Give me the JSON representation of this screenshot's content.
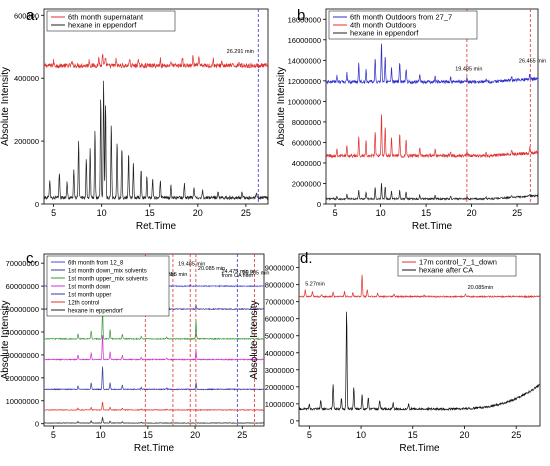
{
  "chart_data": [
    {
      "panel_label": "a.",
      "type": "line",
      "xlabel": "Ret.Time",
      "ylabel": "Absolute Intensity",
      "xlim": [
        4,
        27.3
      ],
      "ylim": [
        0,
        620000
      ],
      "x_ticks": [
        "5",
        "10",
        "15",
        "20",
        "25"
      ],
      "y_ticks": [
        "0",
        "200000",
        "400000",
        "600000"
      ],
      "legend_placement": "top-left",
      "series": [
        {
          "name": "6th month supernatant",
          "color": "#e03030",
          "baseline": 440000,
          "noise": 7000,
          "peaks": [
            [
              5.0,
              14000
            ],
            [
              6.9,
              12000
            ],
            [
              8.7,
              18000
            ],
            [
              9.7,
              26000
            ],
            [
              10.1,
              36000
            ],
            [
              10.4,
              28000
            ],
            [
              11.5,
              20000
            ],
            [
              12.9,
              24000
            ],
            [
              13.8,
              18000
            ],
            [
              16.1,
              22000
            ],
            [
              17.2,
              16000
            ],
            [
              18.4,
              26000
            ],
            [
              19.5,
              30000
            ],
            [
              20.1,
              28000
            ],
            [
              21.6,
              20000
            ],
            [
              22.5,
              16000
            ],
            [
              24.3,
              14000
            ]
          ]
        },
        {
          "name": "hexane in eppendorf",
          "color": "#222222",
          "baseline": 20000,
          "noise": 5000,
          "peaks": [
            [
              4.6,
              60000
            ],
            [
              5.6,
              80000
            ],
            [
              6.4,
              50000
            ],
            [
              7.1,
              90000
            ],
            [
              7.6,
              180000
            ],
            [
              8.4,
              120000
            ],
            [
              8.8,
              160000
            ],
            [
              9.3,
              220000
            ],
            [
              9.9,
              320000
            ],
            [
              10.2,
              380000
            ],
            [
              10.4,
              300000
            ],
            [
              11.0,
              240000
            ],
            [
              11.6,
              180000
            ],
            [
              12.1,
              160000
            ],
            [
              12.8,
              140000
            ],
            [
              13.3,
              110000
            ],
            [
              14.1,
              90000
            ],
            [
              14.7,
              70000
            ],
            [
              15.3,
              60000
            ],
            [
              16.1,
              55000
            ],
            [
              17.2,
              40000
            ],
            [
              18.6,
              45000
            ],
            [
              19.6,
              35000
            ],
            [
              20.5,
              25000
            ],
            [
              22.1,
              20000
            ],
            [
              24.6,
              18000
            ],
            [
              26.1,
              15000
            ]
          ]
        }
      ],
      "vlines": [
        {
          "x": 26.29,
          "color": "#3333cc"
        }
      ],
      "annotations": [
        {
          "text": "26.291 min",
          "x": 23.0,
          "y": 480000
        }
      ]
    },
    {
      "panel_label": "b.",
      "type": "line",
      "xlabel": "Ret.Time",
      "ylabel": "Absolute Intensity",
      "xlim": [
        4,
        27.3
      ],
      "ylim": [
        0,
        19000000
      ],
      "x_ticks": [
        "5",
        "10",
        "15",
        "20",
        "25"
      ],
      "y_ticks": [
        "0",
        "2000000",
        "4000000",
        "6000000",
        "8000000",
        "10000000",
        "12000000",
        "14000000",
        "16000000",
        "18000000"
      ],
      "legend_placement": "top-left",
      "series": [
        {
          "name": "6th month Outdoors from 27_7",
          "color": "#2c2ccc",
          "baseline": 11900000,
          "noise": 150000,
          "peaks": [
            [
              5.2,
              600000
            ],
            [
              6.3,
              900000
            ],
            [
              7.6,
              1800000
            ],
            [
              8.4,
              1200000
            ],
            [
              9.4,
              2300000
            ],
            [
              10.1,
              3800000
            ],
            [
              10.5,
              2600000
            ],
            [
              11.2,
              1500000
            ],
            [
              12.1,
              2000000
            ],
            [
              12.8,
              1300000
            ],
            [
              14.3,
              800000
            ],
            [
              16.0,
              500000
            ],
            [
              17.7,
              400000
            ],
            [
              19.5,
              350000
            ],
            [
              21.6,
              250000
            ],
            [
              24.4,
              300000
            ],
            [
              26.4,
              500000
            ]
          ]
        },
        {
          "name": "4th month Outdoors",
          "color": "#e03030",
          "baseline": 4700000,
          "noise": 150000,
          "peaks": [
            [
              5.2,
              700000
            ],
            [
              6.3,
              1000000
            ],
            [
              7.6,
              2000000
            ],
            [
              8.4,
              1400000
            ],
            [
              9.4,
              2500000
            ],
            [
              10.1,
              4200000
            ],
            [
              10.5,
              2900000
            ],
            [
              11.2,
              1700000
            ],
            [
              12.1,
              2200000
            ],
            [
              12.8,
              1500000
            ],
            [
              14.3,
              900000
            ],
            [
              16.0,
              600000
            ],
            [
              17.7,
              450000
            ],
            [
              19.5,
              400000
            ],
            [
              21.6,
              300000
            ],
            [
              24.4,
              350000
            ],
            [
              26.4,
              600000
            ]
          ]
        },
        {
          "name": "hexane in eppendorf",
          "color": "#222222",
          "baseline": 500000,
          "noise": 80000,
          "peaks": [
            [
              5.2,
              300000
            ],
            [
              6.3,
              500000
            ],
            [
              7.6,
              900000
            ],
            [
              8.4,
              700000
            ],
            [
              9.4,
              1100000
            ],
            [
              10.1,
              1500000
            ],
            [
              10.5,
              1200000
            ],
            [
              11.2,
              800000
            ],
            [
              12.1,
              900000
            ],
            [
              12.8,
              700000
            ],
            [
              14.3,
              400000
            ],
            [
              16.0,
              300000
            ],
            [
              17.7,
              250000
            ],
            [
              19.5,
              200000
            ],
            [
              21.6,
              150000
            ],
            [
              24.4,
              150000
            ],
            [
              26.4,
              200000
            ]
          ]
        }
      ],
      "vlines": [
        {
          "x": 19.485,
          "color": "#e03030"
        },
        {
          "x": 26.455,
          "color": "#e03030"
        }
      ],
      "annotations": [
        {
          "text": "19.485 min",
          "x": 18.2,
          "y": 13000000
        },
        {
          "text": "26.455 min",
          "x": 25.2,
          "y": 13800000
        }
      ]
    },
    {
      "panel_label": "c.",
      "type": "line",
      "xlabel": "Ret.Time",
      "ylabel": "Absolute Intensity",
      "xlim": [
        4,
        27.3
      ],
      "ylim": [
        -1000000,
        74000000
      ],
      "x_ticks": [
        "5",
        "10",
        "15",
        "20",
        "25"
      ],
      "y_ticks": [
        "0",
        "10000000",
        "20000000",
        "30000000",
        "40000000",
        "50000000",
        "60000000",
        "70000000"
      ],
      "legend_placement": "top-left",
      "series": [
        {
          "name": "6th month from 12_8",
          "color": "#4a4adb",
          "baseline": 60000000,
          "noise": 200000,
          "peaks": [
            [
              7.6,
              1500000
            ],
            [
              9.0,
              2000000
            ],
            [
              10.2,
              9000000
            ],
            [
              11.0,
              2500000
            ],
            [
              12.3,
              1500000
            ],
            [
              14.3,
              800000
            ],
            [
              17.0,
              600000
            ],
            [
              19.5,
              500000
            ]
          ]
        },
        {
          "name": "1st month down_mix solvents",
          "color": "#3a3a9a",
          "baseline": 50000000,
          "noise": 200000,
          "peaks": [
            [
              7.6,
              1500000
            ],
            [
              9.0,
              2500000
            ],
            [
              10.2,
              10000000
            ],
            [
              11.0,
              3000000
            ],
            [
              12.3,
              1800000
            ],
            [
              14.3,
              900000
            ],
            [
              17.0,
              700000
            ],
            [
              20.1,
              1500000
            ]
          ]
        },
        {
          "name": "1st month upper_mix solvents",
          "color": "#3a9a3a",
          "baseline": 37000000,
          "noise": 200000,
          "peaks": [
            [
              7.6,
              2000000
            ],
            [
              9.0,
              3500000
            ],
            [
              10.2,
              12000000
            ],
            [
              11.0,
              4000000
            ],
            [
              12.3,
              2000000
            ],
            [
              14.3,
              1000000
            ],
            [
              17.0,
              800000
            ],
            [
              20.1,
              8000000
            ]
          ]
        },
        {
          "name": "1st month down",
          "color": "#cc33cc",
          "baseline": 28000000,
          "noise": 200000,
          "peaks": [
            [
              7.6,
              2000000
            ],
            [
              9.0,
              3000000
            ],
            [
              10.2,
              11000000
            ],
            [
              11.0,
              3500000
            ],
            [
              12.3,
              2000000
            ],
            [
              14.3,
              900000
            ],
            [
              17.0,
              700000
            ],
            [
              20.1,
              4000000
            ]
          ]
        },
        {
          "name": "1st month upper",
          "color": "#3a3aaa",
          "baseline": 15000000,
          "noise": 200000,
          "peaks": [
            [
              7.6,
              1500000
            ],
            [
              9.0,
              2800000
            ],
            [
              10.2,
              10000000
            ],
            [
              11.0,
              3000000
            ],
            [
              12.3,
              1800000
            ],
            [
              14.3,
              800000
            ],
            [
              17.0,
              600000
            ],
            [
              20.1,
              3000000
            ]
          ]
        },
        {
          "name": "12th control",
          "color": "#e03030",
          "baseline": 6000000,
          "noise": 150000,
          "peaks": [
            [
              7.6,
              800000
            ],
            [
              9.0,
              1200000
            ],
            [
              10.2,
              3500000
            ],
            [
              11.0,
              1200000
            ],
            [
              12.3,
              800000
            ],
            [
              14.3,
              400000
            ],
            [
              17.0,
              300000
            ]
          ]
        },
        {
          "name": "hexane in eppendorf",
          "color": "#222222",
          "baseline": 300000,
          "noise": 100000,
          "peaks": [
            [
              7.6,
              600000
            ],
            [
              9.0,
              900000
            ],
            [
              10.2,
              2500000
            ],
            [
              11.0,
              900000
            ],
            [
              12.3,
              600000
            ],
            [
              14.3,
              300000
            ]
          ]
        }
      ],
      "vlines": [
        {
          "x": 14.73,
          "color": "#e03030"
        },
        {
          "x": 17.655,
          "color": "#e03030"
        },
        {
          "x": 19.485,
          "color": "#e03030"
        },
        {
          "x": 20.085,
          "color": "#e03030"
        },
        {
          "x": 24.475,
          "color": "#3333cc"
        },
        {
          "x": 26.285,
          "color": "#e03030"
        }
      ],
      "annotations": [
        {
          "text": "19.485 min",
          "x": 18.2,
          "y": 69000000
        },
        {
          "text": "14.730 min",
          "x": 15.0,
          "y": 64500000
        },
        {
          "text": "17.655 min",
          "x": 16.3,
          "y": 64500000
        },
        {
          "text": "20.085 min",
          "x": 20.3,
          "y": 67000000
        },
        {
          "text": "24.475 min is",
          "x": 22.8,
          "y": 65800000
        },
        {
          "text": "from CA filter",
          "x": 22.8,
          "y": 63900000
        },
        {
          "text": "26.285 min",
          "x": 25.0,
          "y": 65000000
        }
      ]
    },
    {
      "panel_label": "d.",
      "type": "line",
      "xlabel": "Ret.Time",
      "ylabel": "Absolute Intensity",
      "xlim": [
        4,
        27.3
      ],
      "ylim": [
        -300000,
        9800000
      ],
      "x_ticks": [
        "5",
        "10",
        "15",
        "20",
        "25"
      ],
      "y_ticks": [
        "0",
        "1000000",
        "2000000",
        "3000000",
        "4000000",
        "5000000",
        "6000000",
        "7000000",
        "8000000",
        "9000000"
      ],
      "legend_placement": "top-right",
      "series": [
        {
          "name": "17m control_7_1_down",
          "color": "#e03030",
          "baseline": 7300000,
          "noise": 40000,
          "peaks": [
            [
              4.6,
              400000
            ],
            [
              5.3,
              300000
            ],
            [
              6.2,
              150000
            ],
            [
              7.3,
              250000
            ],
            [
              8.4,
              300000
            ],
            [
              9.2,
              200000
            ],
            [
              10.1,
              1300000
            ],
            [
              10.6,
              400000
            ],
            [
              11.6,
              200000
            ],
            [
              13.2,
              150000
            ],
            [
              16.1,
              100000
            ],
            [
              20.1,
              150000
            ]
          ]
        },
        {
          "name": "hexane after CA",
          "color": "#111111",
          "baseline": 700000,
          "noise": 60000,
          "peaks": [
            [
              5.0,
              300000
            ],
            [
              6.1,
              500000
            ],
            [
              7.3,
              1400000
            ],
            [
              8.1,
              600000
            ],
            [
              8.6,
              5800000
            ],
            [
              9.3,
              1300000
            ],
            [
              10.1,
              900000
            ],
            [
              10.7,
              700000
            ],
            [
              11.8,
              500000
            ],
            [
              13.1,
              400000
            ],
            [
              14.6,
              300000
            ]
          ]
        }
      ],
      "vlines": [],
      "annotations": [
        {
          "text": "5.27min",
          "x": 4.6,
          "y": 7950000
        },
        {
          "text": "20.085min",
          "x": 20.3,
          "y": 7750000
        }
      ]
    }
  ]
}
